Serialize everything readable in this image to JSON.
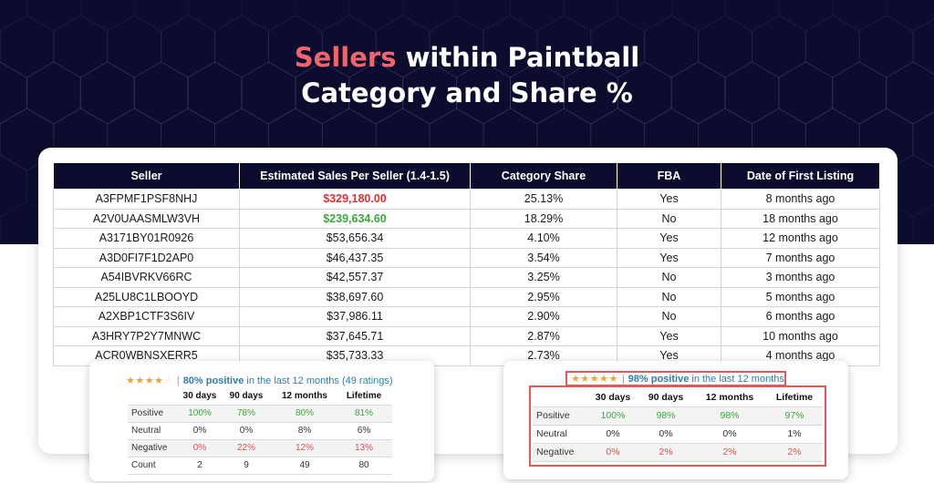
{
  "title": {
    "accent": "Sellers",
    "line1_rest": " within Paintball",
    "line2": "Category and Share %"
  },
  "colors": {
    "background": "#0c0c2e",
    "accent": "#f0646d",
    "negative": "#e03131",
    "positive": "#3aa83a"
  },
  "table": {
    "headers": [
      "Seller",
      "Estimated Sales Per Seller (1.4-1.5)",
      "Category Share",
      "FBA",
      "Date of First Listing"
    ],
    "rows": [
      {
        "seller": "A3FPMF1PSF8NHJ",
        "sales": "$329,180.00",
        "share": "25.13%",
        "fba": "Yes",
        "date": "8 months ago"
      },
      {
        "seller": "A2V0UAASMLW3VH",
        "sales": "$239,634.60",
        "share": "18.29%",
        "fba": "No",
        "date": "18 months ago"
      },
      {
        "seller": "A3171BY01R0926",
        "sales": "$53,656.34",
        "share": "4.10%",
        "fba": "Yes",
        "date": "12 months ago"
      },
      {
        "seller": "A3D0FI7F1D2AP0",
        "sales": "$46,437.35",
        "share": "3.54%",
        "fba": "Yes",
        "date": "7 months ago"
      },
      {
        "seller": "A54IBVRKV66RC",
        "sales": "$42,557.37",
        "share": "3.25%",
        "fba": "No",
        "date": "3 months ago"
      },
      {
        "seller": "A25LU8C1LBOOYD",
        "sales": "$38,697.60",
        "share": "2.95%",
        "fba": "No",
        "date": "5 months ago"
      },
      {
        "seller": "A2XBP1CTF3S6IV",
        "sales": "$37,986.11",
        "share": "2.90%",
        "fba": "No",
        "date": "6 months ago"
      },
      {
        "seller": "A3HRY7P2Y7MNWC",
        "sales": "$37,645.71",
        "share": "2.87%",
        "fba": "Yes",
        "date": "10 months ago"
      },
      {
        "seller": "ACR0WBNSXERR5",
        "sales": "$35,733.33",
        "share": "2.73%",
        "fba": "Yes",
        "date": "4 months ago"
      }
    ]
  },
  "feedback_left": {
    "stars_filled": 4,
    "stars_total": 5,
    "positive_text": "80% positive",
    "rest_text": "in the last 12 months (49 ratings)",
    "columns": [
      "30 days",
      "90 days",
      "12 months",
      "Lifetime"
    ],
    "rows": [
      {
        "label": "Positive",
        "values": [
          "100%",
          "78%",
          "80%",
          "81%"
        ]
      },
      {
        "label": "Neutral",
        "values": [
          "0%",
          "0%",
          "8%",
          "6%"
        ]
      },
      {
        "label": "Negative",
        "values": [
          "0%",
          "22%",
          "12%",
          "13%"
        ]
      },
      {
        "label": "Count",
        "values": [
          "2",
          "9",
          "49",
          "80"
        ]
      }
    ]
  },
  "feedback_right": {
    "stars_filled": 5,
    "stars_total": 5,
    "positive_text": "98% positive",
    "rest_text": "in the last 12 months",
    "columns": [
      "30 days",
      "90 days",
      "12 months",
      "Lifetime"
    ],
    "rows": [
      {
        "label": "Positive",
        "values": [
          "100%",
          "98%",
          "98%",
          "97%"
        ]
      },
      {
        "label": "Neutral",
        "values": [
          "0%",
          "0%",
          "0%",
          "1%"
        ]
      },
      {
        "label": "Negative",
        "values": [
          "0%",
          "2%",
          "2%",
          "2%"
        ]
      }
    ]
  }
}
